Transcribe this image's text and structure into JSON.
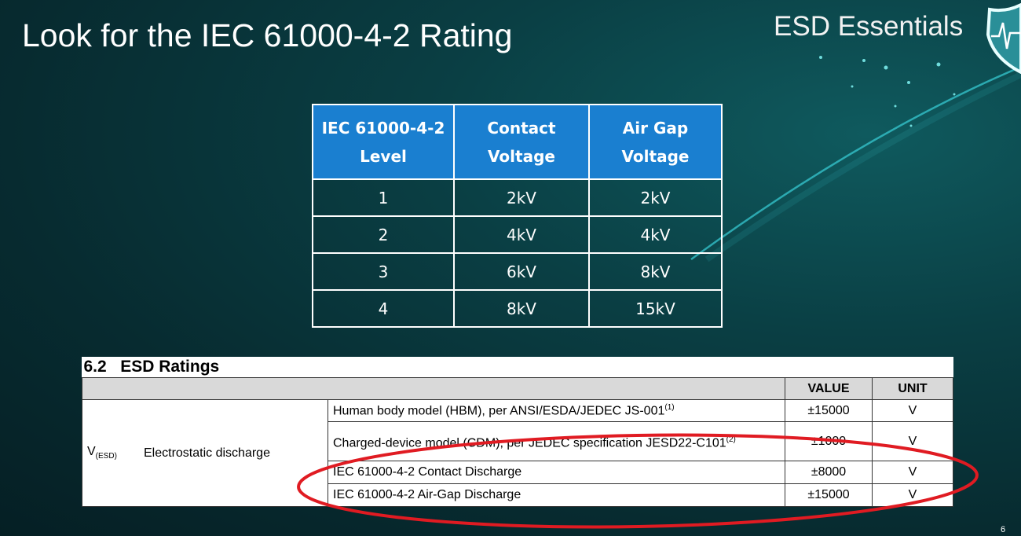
{
  "slide": {
    "title": "Look for the IEC 61000-4-2 Rating",
    "brand": "ESD Essentials",
    "page": "6",
    "accent": "#1a7fd0",
    "highlight": "#e01b22",
    "logo_icon": "shield-heartbeat-icon"
  },
  "iec_table": {
    "headers": [
      "IEC 61000-4-2 Level",
      "Contact Voltage",
      "Air Gap Voltage"
    ],
    "rows": [
      [
        "1",
        "2kV",
        "2kV"
      ],
      [
        "2",
        "4kV",
        "4kV"
      ],
      [
        "3",
        "6kV",
        "8kV"
      ],
      [
        "4",
        "8kV",
        "15kV"
      ]
    ]
  },
  "esd_table": {
    "caption": "6.2   ESD Ratings",
    "headers": {
      "value": "VALUE",
      "unit": "UNIT"
    },
    "symbol": "V",
    "symbol_sub": "(ESD)",
    "parameter": "Electrostatic discharge",
    "rows": [
      {
        "condition": "Human body model (HBM), per ANSI/ESDA/JEDEC JS-001",
        "note": "(1)",
        "value": "±15000",
        "unit": "V"
      },
      {
        "condition": "Charged-device model (CDM), per JEDEC specification JESD22-C101",
        "note": "(2)",
        "value": "±1000",
        "unit": "V"
      },
      {
        "condition": "IEC 61000-4-2 Contact Discharge",
        "value": "±8000",
        "unit": "V"
      },
      {
        "condition": "IEC 61000-4-2 Air-Gap Discharge",
        "value": "±15000",
        "unit": "V"
      }
    ]
  }
}
